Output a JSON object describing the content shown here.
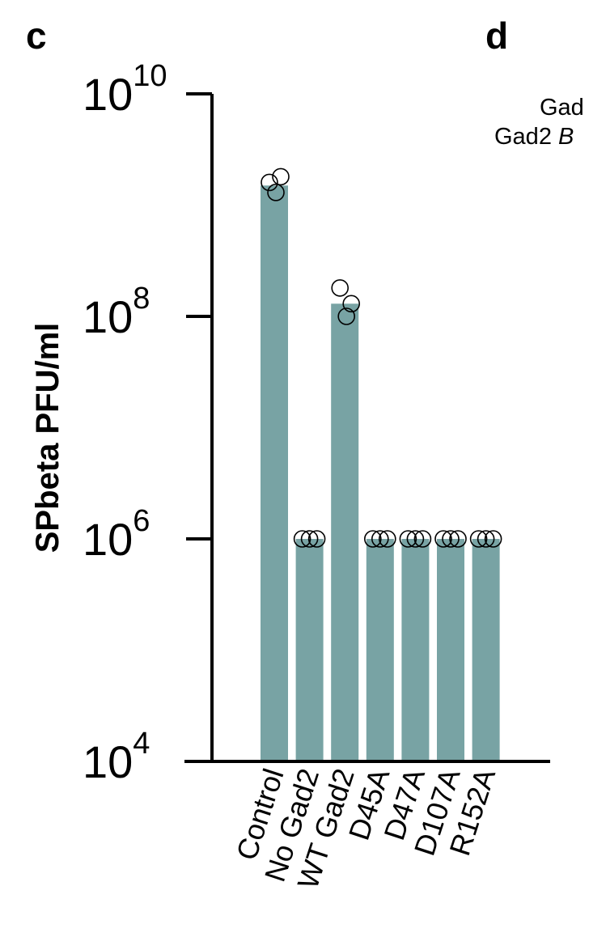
{
  "panels": {
    "left_letter": "c",
    "right_letter": "d"
  },
  "right_panel_text": {
    "line1": "Gad",
    "line2_prefix": "Gad2 ",
    "line2_italic": "B"
  },
  "chart_data": {
    "type": "bar",
    "title": "",
    "xlabel": "",
    "ylabel": "SPbeta PFU/ml",
    "yscale": "log",
    "ylim": [
      10000,
      10000000000
    ],
    "yticks": [
      {
        "base": "10",
        "exp": "4",
        "value": 10000
      },
      {
        "base": "10",
        "exp": "6",
        "value": 1000000
      },
      {
        "base": "10",
        "exp": "8",
        "value": 100000000
      },
      {
        "base": "10",
        "exp": "10",
        "value": 10000000000
      }
    ],
    "categories": [
      "Control",
      "No Gad2",
      "WT Gad2",
      "D45A",
      "D47A",
      "D107A",
      "R152A"
    ],
    "values": [
      1500000000,
      1000000,
      130000000,
      1000000,
      1000000,
      1000000,
      1000000
    ],
    "replicates": [
      [
        1600000000,
        1800000000,
        1300000000
      ],
      [
        1000000,
        1000000,
        1000000
      ],
      [
        180000000,
        130000000,
        100000000
      ],
      [
        1000000,
        1000000,
        1000000
      ],
      [
        1000000,
        1000000,
        1000000
      ],
      [
        1000000,
        1000000,
        1000000
      ],
      [
        1000000,
        1000000,
        1000000
      ]
    ],
    "bar_color": "#78a3a4",
    "grid": false,
    "legend": "none"
  }
}
